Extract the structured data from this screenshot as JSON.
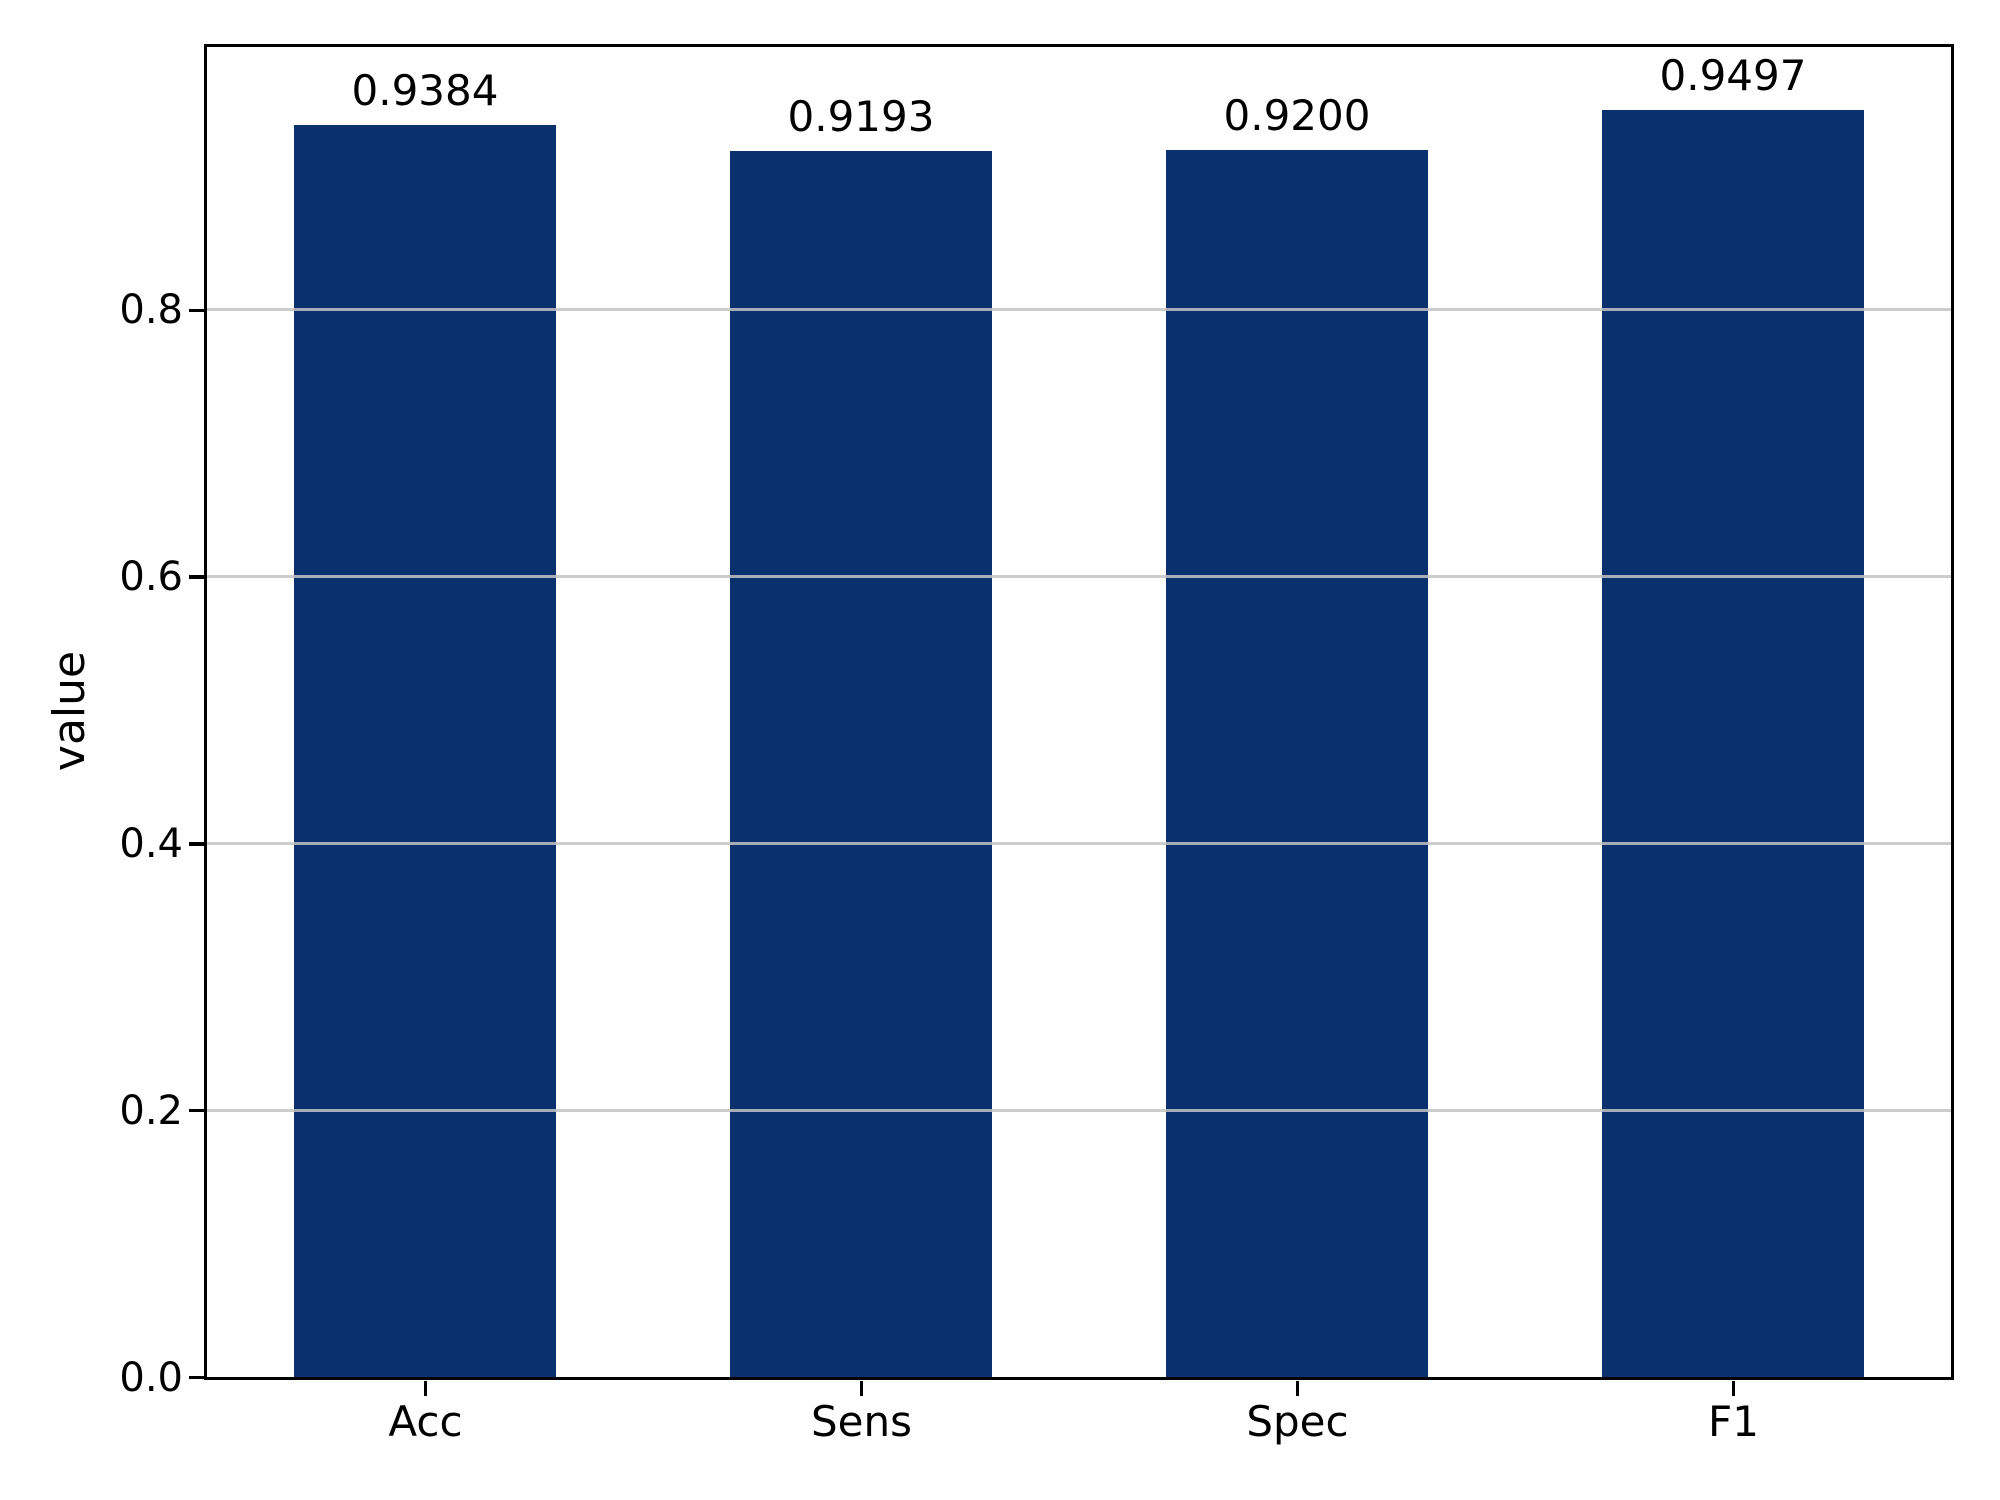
{
  "chart_data": {
    "type": "bar",
    "categories": [
      "Acc",
      "Sens",
      "Spec",
      "F1"
    ],
    "values": [
      0.9384,
      0.9193,
      0.92,
      0.9497
    ],
    "bar_labels": [
      "0.9384",
      "0.9193",
      "0.9200",
      "0.9497"
    ],
    "title": "",
    "xlabel": "",
    "ylabel": "value",
    "ylim": [
      0.0,
      1.0
    ],
    "yticks": [
      0.0,
      0.2,
      0.4,
      0.6,
      0.8
    ],
    "ytick_labels": [
      "0.0",
      "0.2",
      "0.4",
      "0.6",
      "0.8"
    ],
    "grid": true,
    "legend_position": "none",
    "bar_color": "#0a316d",
    "grid_color_rgba": "rgba(195,195,195,0.85)",
    "spine_color": "#000000",
    "background_color": "#ffffff"
  }
}
